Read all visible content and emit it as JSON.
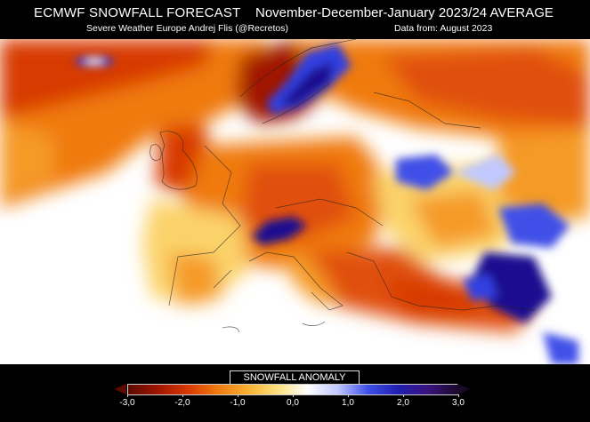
{
  "header": {
    "title": "ECMWF SNOWFALL FORECAST",
    "period": "November-December-January 2023/24 AVERAGE",
    "source_left": "Severe Weather Europe   Andrej Flis (@Recretos)",
    "source_right": "Data from: August 2023"
  },
  "legend": {
    "title": "SNOWFALL ANOMALY",
    "ticks": [
      "-3,0",
      "-2,0",
      "-1,0",
      "0,0",
      "1,0",
      "2,0",
      "3,0"
    ],
    "range": [
      -3,
      3
    ],
    "colors": [
      "#5a0a00",
      "#a01500",
      "#d83a00",
      "#f07a10",
      "#f8b030",
      "#fde080",
      "#ffffff",
      "#c0c8ff",
      "#4050e8",
      "#2020b0",
      "#3a1280",
      "#1a0a2a"
    ]
  },
  "map": {
    "palette": {
      "strong_deficit": "#a01500",
      "deficit": "#e05010",
      "mild_deficit": "#f59a25",
      "slight_deficit": "#fbd36a",
      "neutral": "#ffffff",
      "surplus": "#3040e0",
      "strong_surplus": "#1a1090"
    }
  }
}
